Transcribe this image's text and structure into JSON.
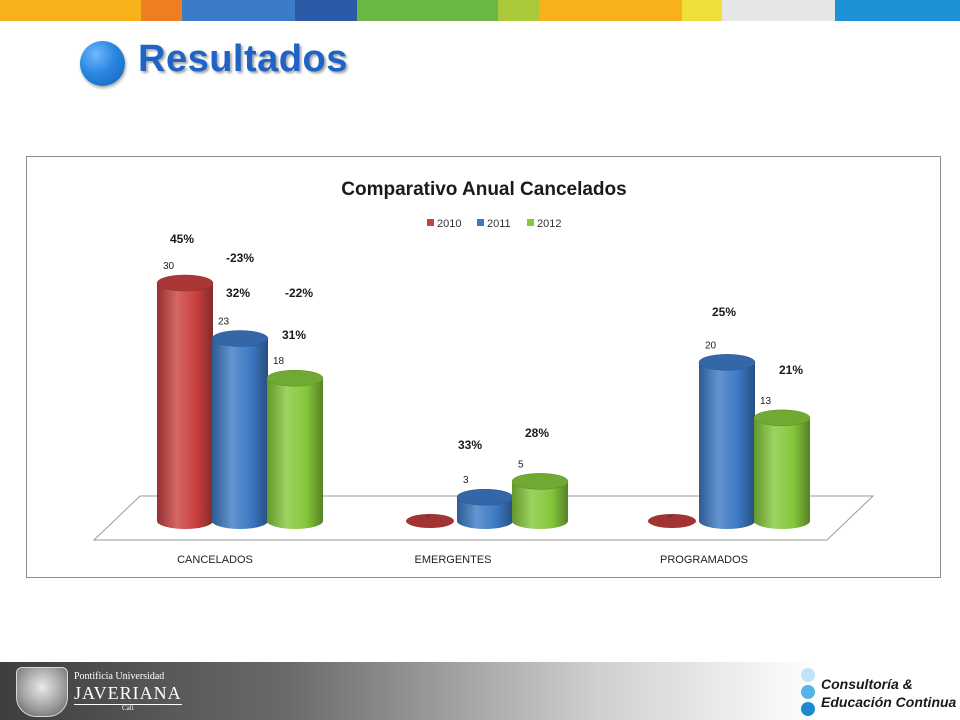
{
  "slide": {
    "title": "Resultados"
  },
  "colors": {
    "strip": [
      "#f7b21b",
      "#ef7d22",
      "#3b7cc9",
      "#2b5aa7",
      "#6ab744",
      "#a9c93b",
      "#f7b21b",
      "#f2e03a",
      "#e6e6e6",
      "#1e92d6"
    ],
    "title": "#1f63c6",
    "series": [
      "#c9403f",
      "#3c79c4",
      "#85c83b"
    ]
  },
  "chart_data": {
    "type": "bar",
    "title": "Comparativo Anual Cancelados",
    "categories": [
      "CANCELADOS",
      "EMERGENTES",
      "PROGRAMADOS"
    ],
    "series": [
      {
        "name": "2010",
        "values": [
          30,
          0,
          0
        ],
        "labels": [
          "30",
          "-",
          "-"
        ]
      },
      {
        "name": "2011",
        "values": [
          23,
          3,
          20
        ],
        "labels": [
          "23",
          "3",
          "20"
        ]
      },
      {
        "name": "2012",
        "values": [
          18,
          5,
          13
        ],
        "labels": [
          "18",
          "5",
          "13"
        ]
      }
    ],
    "legend_position": "top",
    "ylim": [
      0,
      32
    ],
    "annotations": [
      {
        "category": 0,
        "series": 0,
        "text": "45%"
      },
      {
        "category": 0,
        "series": 1,
        "text": "-23%"
      },
      {
        "category": 0,
        "series": 1,
        "text": "32%"
      },
      {
        "category": 0,
        "series": 2,
        "text": "-22%"
      },
      {
        "category": 0,
        "series": 2,
        "text": "31%"
      },
      {
        "category": 1,
        "series": 1,
        "text": "33%"
      },
      {
        "category": 1,
        "series": 2,
        "text": "28%"
      },
      {
        "category": 2,
        "series": 1,
        "text": "25%"
      },
      {
        "category": 2,
        "series": 2,
        "text": "21%"
      }
    ]
  },
  "footer": {
    "left_logo": {
      "line1": "Pontificia Universidad",
      "line2": "JAVERIANA",
      "line3": "Cali"
    },
    "right_logo": {
      "line1": "Consultoría &",
      "line2": "Educación Continua"
    }
  }
}
